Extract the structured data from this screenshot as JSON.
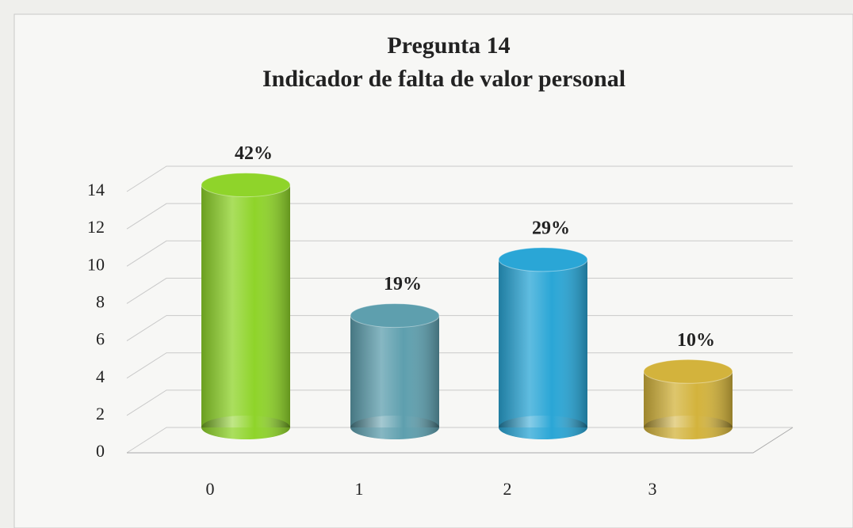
{
  "chart_data": {
    "type": "bar3d",
    "title": [
      "Pregunta 14",
      "Indicador de falta de valor personal"
    ],
    "categories": [
      "0",
      "1",
      "2",
      "3"
    ],
    "values": [
      13,
      6,
      9,
      3
    ],
    "value_labels": [
      "42%",
      "19%",
      "29%",
      "10%"
    ],
    "colors": [
      "#8fd42a",
      "#5e9fae",
      "#2aa6d6",
      "#d3b33c"
    ],
    "ylim": [
      0,
      14
    ],
    "yticks": [
      0,
      2,
      4,
      6,
      8,
      10,
      12,
      14
    ],
    "grid": true
  }
}
